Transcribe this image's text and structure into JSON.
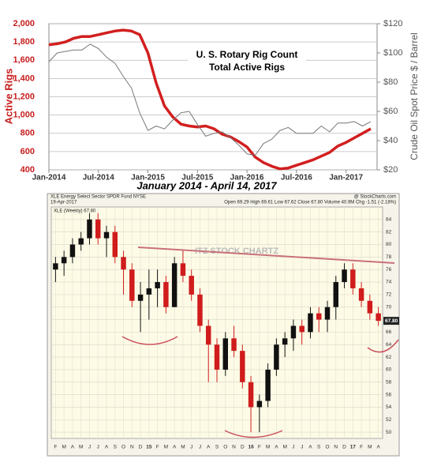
{
  "chart_data": [
    {
      "type": "line",
      "title": "U. S. Rotary Rig Count",
      "subtitle": "Total Active Rigs",
      "caption": "January 2014 - April 14, 2017",
      "ylabel": "Active Rigs",
      "y2label": "Crude Oil Spot Price $ / Barrel",
      "categories": [
        "Jan-2014",
        null,
        null,
        null,
        null,
        null,
        "Jul-2014",
        null,
        null,
        null,
        null,
        null,
        "Jan-2015",
        null,
        null,
        null,
        null,
        null,
        "Jul-2015",
        null,
        null,
        null,
        null,
        null,
        "Jan-2016",
        null,
        null,
        null,
        null,
        null,
        "Jul-2016",
        null,
        null,
        null,
        null,
        null,
        "Jan-2017",
        null,
        null,
        null
      ],
      "series": [
        {
          "name": "Active Rigs",
          "color": "#d21f1f",
          "width": 3.5,
          "values": [
            1770,
            1780,
            1800,
            1840,
            1860,
            1860,
            1880,
            1900,
            1920,
            1930,
            1920,
            1880,
            1680,
            1350,
            1100,
            980,
            900,
            880,
            870,
            880,
            850,
            790,
            760,
            710,
            650,
            540,
            480,
            440,
            410,
            420,
            450,
            480,
            510,
            550,
            590,
            660,
            700,
            750,
            800,
            850
          ]
        },
        {
          "name": "Crude Oil Spot Price",
          "color": "#777777",
          "width": 1,
          "axis": "y2",
          "values": [
            94,
            100,
            101,
            102,
            102,
            106,
            103,
            97,
            93,
            84,
            76,
            59,
            47,
            50,
            48,
            54,
            59,
            60,
            51,
            43,
            45,
            46,
            42,
            37,
            31,
            30,
            38,
            41,
            47,
            49,
            45,
            45,
            45,
            50,
            46,
            52,
            52,
            53,
            50,
            53
          ]
        }
      ],
      "ylim": [
        400,
        2000
      ],
      "yticks": [
        400,
        600,
        800,
        {
          "value": 1000,
          "label": "1,000"
        },
        {
          "value": 1200,
          "label": "1,200"
        },
        {
          "value": 1400,
          "label": "1,400"
        },
        {
          "value": 1600,
          "label": "1,600"
        },
        {
          "value": 1800,
          "label": "1,800"
        },
        {
          "value": 2000,
          "label": "2,000"
        }
      ],
      "y2lim": [
        20,
        120
      ],
      "y2ticks": [
        {
          "value": 20,
          "label": "$20"
        },
        {
          "value": 40,
          "label": "$40"
        },
        {
          "value": 60,
          "label": "$60"
        },
        {
          "value": 80,
          "label": "$80"
        },
        {
          "value": 100,
          "label": "$100"
        },
        {
          "value": 120,
          "label": "$120"
        }
      ],
      "grid": true
    },
    {
      "type": "candlestick",
      "header": "XLE Energy Select Sector SPDR Fund NYSE",
      "source": "@ StockCharts.com",
      "date": "19-Apr-2017",
      "quote": "Open 69.29  High 69.61  Low 67.62  Close 67.80  Volume 40.9M  Chg -1.51 (-2.18%)",
      "series_label": "XLE (Weekly) 67.80",
      "watermark": "ITZ STOCK CHARTZ",
      "last_label": "67.80",
      "categories": [
        "F",
        "M",
        "A",
        "M",
        "J",
        "J",
        "A",
        "S",
        "O",
        "N",
        "D",
        "15",
        "F",
        "M",
        "A",
        "M",
        "J",
        "J",
        "A",
        "S",
        "O",
        "N",
        "D",
        "16",
        "F",
        "M",
        "A",
        "M",
        "J",
        "J",
        "A",
        "S",
        "O",
        "N",
        "D",
        "17",
        "F",
        "M",
        "A"
      ],
      "open": [
        76,
        77,
        78,
        80,
        81,
        84,
        81,
        82,
        78,
        76,
        71,
        72,
        73,
        74,
        70,
        77,
        75,
        72,
        67,
        64,
        60,
        65,
        63,
        58,
        54,
        55,
        60,
        64,
        65,
        67,
        66,
        69,
        68,
        70,
        74,
        76,
        73,
        71,
        69
      ],
      "high": [
        78,
        79,
        81,
        82,
        85,
        85,
        83,
        83,
        79,
        77,
        74,
        76,
        76,
        75,
        78,
        79,
        76,
        73,
        68,
        65,
        66,
        67,
        64,
        59,
        56,
        61,
        65,
        66,
        68,
        68,
        70,
        70,
        71,
        75,
        77,
        77,
        74,
        72,
        70
      ],
      "low": [
        74,
        75,
        77,
        79,
        80,
        80,
        78,
        77,
        72,
        70,
        66,
        68,
        70,
        69,
        70,
        74,
        71,
        66,
        58,
        58,
        59,
        62,
        57,
        50,
        50,
        54,
        59,
        62,
        63,
        64,
        65,
        66,
        66,
        68,
        73,
        72,
        70,
        68,
        67
      ],
      "close": [
        77,
        78,
        80,
        81,
        84,
        81,
        82,
        78,
        76,
        71,
        72,
        73,
        74,
        70,
        77,
        75,
        72,
        67,
        64,
        60,
        65,
        63,
        58,
        54,
        55,
        60,
        64,
        65,
        67,
        66,
        69,
        68,
        70,
        74,
        76,
        73,
        71,
        69,
        67.8
      ],
      "up_color": "#111111",
      "down_color": "#d01c1c",
      "ylim": [
        49,
        86
      ],
      "yticks": [
        50,
        52,
        54,
        56,
        58,
        60,
        62,
        64,
        66,
        68,
        70,
        72,
        74,
        76,
        78,
        80,
        82,
        84
      ],
      "grid": true
    }
  ]
}
